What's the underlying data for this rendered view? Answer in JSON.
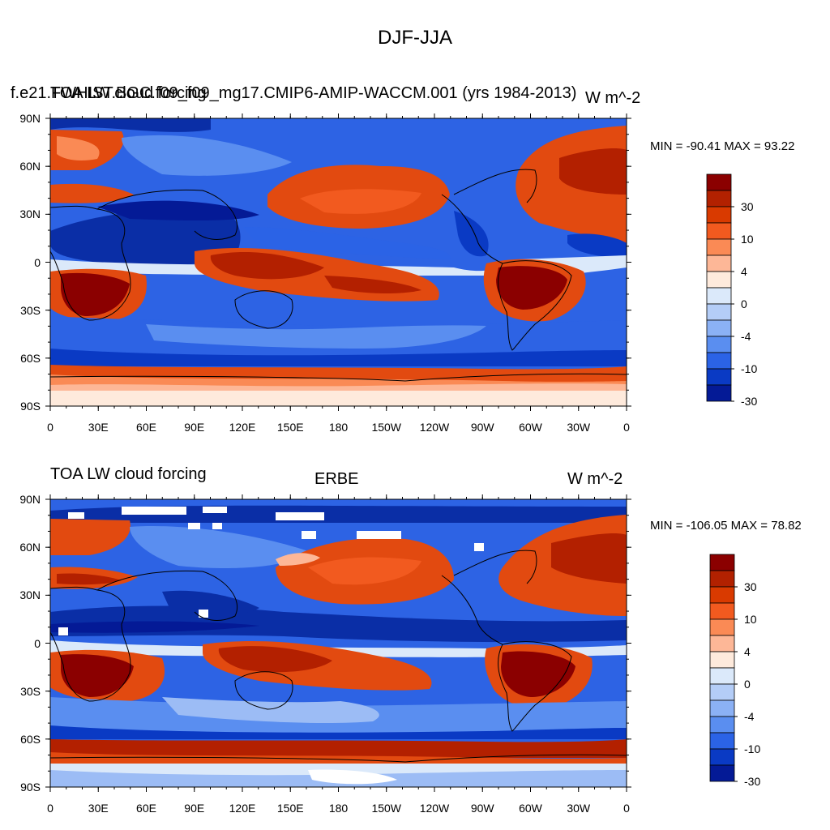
{
  "title": "DJF-JJA",
  "panels": [
    {
      "left_title": "f.e21.FWHIST.BGC.f09_f09_mg17.CMIP6-AMIP-WACCM.001 (yrs 1984-2013)",
      "left_title_overlap": "TOA LW cloud forcing",
      "center_title": "",
      "right_title": "W m^-2",
      "stats": "MIN = -90.41 MAX =  93.22"
    },
    {
      "left_title": "TOA LW cloud forcing",
      "center_title": "ERBE",
      "right_title": "W m^-2",
      "stats": "MIN = -106.05 MAX =  78.82"
    }
  ],
  "lat_labels": [
    "90N",
    "60N",
    "30N",
    "0",
    "30S",
    "60S",
    "90S"
  ],
  "lon_labels": [
    "0",
    "30E",
    "60E",
    "90E",
    "120E",
    "150E",
    "180",
    "150W",
    "120W",
    "90W",
    "60W",
    "30W",
    "0"
  ],
  "colorbar": {
    "labels": [
      "30",
      "10",
      "4",
      "0",
      "-4",
      "-10",
      "-30"
    ],
    "colors": [
      "#8b0000",
      "#b22100",
      "#d93a00",
      "#f25a1f",
      "#fa8a55",
      "#fdb797",
      "#feeadc",
      "#dbe9fa",
      "#b4cdf7",
      "#8bb1f5",
      "#5a8ef0",
      "#2b63e6",
      "#0a3ac4",
      "#041a96"
    ]
  },
  "legend_colors": {
    "strong_positive": "#b32000",
    "positive": "#e24a10",
    "weak_positive": "#f8c2a8",
    "near_zero": "#eef3fb",
    "weak_negative": "#9cbcf5",
    "negative": "#2d63e4",
    "strong_negative": "#0a2ea6",
    "missing": "#ffffff"
  }
}
